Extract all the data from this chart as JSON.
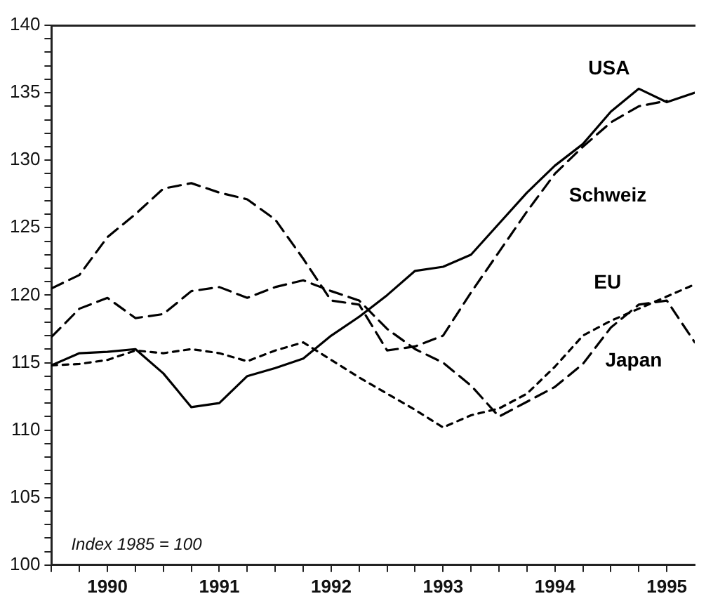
{
  "chart_data": {
    "type": "line",
    "x": [
      1990,
      1990.25,
      1990.5,
      1990.75,
      1991,
      1991.25,
      1991.5,
      1991.75,
      1992,
      1992.25,
      1992.5,
      1992.75,
      1993,
      1993.25,
      1993.5,
      1993.75,
      1994,
      1994.25,
      1994.5,
      1994.75,
      1995,
      1995.25,
      1995.5,
      1995.75
    ],
    "series": [
      {
        "name": "USA",
        "color": "#000000",
        "line_style": "solid",
        "values": [
          114.8,
          115.7,
          115.8,
          116.0,
          114.2,
          111.7,
          112.0,
          114.0,
          114.6,
          115.3,
          117.0,
          118.4,
          120.0,
          121.8,
          122.1,
          123.0,
          125.3,
          127.6,
          129.6,
          131.2,
          133.6,
          135.3,
          134.3,
          135.0
        ]
      },
      {
        "name": "Schweiz",
        "color": "#000000",
        "line_style": "dashed",
        "values": [
          120.5,
          121.5,
          124.3,
          126.0,
          127.9,
          128.3,
          127.6,
          127.1,
          125.6,
          122.7,
          119.6,
          119.3,
          115.9,
          116.2,
          117.0,
          120.2,
          123.2,
          126.2,
          129.0,
          131.0,
          132.8,
          134.0,
          134.4,
          null
        ]
      },
      {
        "name": "EU",
        "color": "#000000",
        "line_style": "dotted",
        "values": [
          114.8,
          114.9,
          115.2,
          115.9,
          115.7,
          116.0,
          115.7,
          115.1,
          115.9,
          116.5,
          115.2,
          113.9,
          112.7,
          111.5,
          110.2,
          111.1,
          111.6,
          112.7,
          114.7,
          117.0,
          118.1,
          119.0,
          119.9,
          120.8
        ]
      },
      {
        "name": "Japan",
        "color": "#000000",
        "line_style": "dashed",
        "values": [
          116.9,
          119.0,
          119.8,
          118.3,
          118.6,
          120.3,
          120.6,
          119.8,
          120.6,
          121.1,
          120.3,
          119.6,
          117.5,
          116.0,
          115.0,
          113.3,
          111.0,
          112.1,
          113.2,
          114.9,
          117.6,
          119.3,
          119.6,
          116.5
        ]
      }
    ],
    "xlim": [
      1990,
      1995.75
    ],
    "xticks": [
      {
        "value": 1990,
        "label": null
      },
      {
        "value": 1990.25,
        "label": null
      },
      {
        "value": 1990.5,
        "label": "1990"
      },
      {
        "value": 1990.75,
        "label": null
      },
      {
        "value": 1991,
        "label": null
      },
      {
        "value": 1991.25,
        "label": null
      },
      {
        "value": 1991.5,
        "label": "1991"
      },
      {
        "value": 1991.75,
        "label": null
      },
      {
        "value": 1992,
        "label": null
      },
      {
        "value": 1992.25,
        "label": null
      },
      {
        "value": 1992.5,
        "label": "1992"
      },
      {
        "value": 1992.75,
        "label": null
      },
      {
        "value": 1993,
        "label": null
      },
      {
        "value": 1993.25,
        "label": null
      },
      {
        "value": 1993.5,
        "label": "1993"
      },
      {
        "value": 1993.75,
        "label": null
      },
      {
        "value": 1994,
        "label": null
      },
      {
        "value": 1994.25,
        "label": null
      },
      {
        "value": 1994.5,
        "label": "1994"
      },
      {
        "value": 1994.75,
        "label": null
      },
      {
        "value": 1995,
        "label": null
      },
      {
        "value": 1995.25,
        "label": null
      },
      {
        "value": 1995.5,
        "label": "1995"
      }
    ],
    "ylim": [
      100,
      140
    ],
    "yticks": [
      100,
      {
        "value": 101,
        "label": null
      },
      {
        "value": 102,
        "label": null
      },
      {
        "value": 103,
        "label": null
      },
      {
        "value": 104,
        "label": null
      },
      105,
      {
        "value": 106,
        "label": null
      },
      {
        "value": 107,
        "label": null
      },
      {
        "value": 108,
        "label": null
      },
      {
        "value": 109,
        "label": null
      },
      110,
      {
        "value": 111,
        "label": null
      },
      {
        "value": 112,
        "label": null
      },
      {
        "value": 113,
        "label": null
      },
      {
        "value": 114,
        "label": null
      },
      115,
      {
        "value": 116,
        "label": null
      },
      {
        "value": 117,
        "label": null
      },
      {
        "value": 118,
        "label": null
      },
      {
        "value": 119,
        "label": null
      },
      120,
      {
        "value": 121,
        "label": null
      },
      {
        "value": 122,
        "label": null
      },
      {
        "value": 123,
        "label": null
      },
      {
        "value": 124,
        "label": null
      },
      125,
      {
        "value": 126,
        "label": null
      },
      {
        "value": 127,
        "label": null
      },
      {
        "value": 128,
        "label": null
      },
      {
        "value": 129,
        "label": null
      },
      130,
      {
        "value": 131,
        "label": null
      },
      {
        "value": 132,
        "label": null
      },
      {
        "value": 133,
        "label": null
      },
      {
        "value": 134,
        "label": null
      },
      135,
      {
        "value": 136,
        "label": null
      },
      {
        "value": 137,
        "label": null
      },
      {
        "value": 138,
        "label": null
      },
      {
        "value": 139,
        "label": null
      },
      140
    ],
    "annotations": [
      "Index 1985 = 100"
    ],
    "grid": false,
    "legend": false,
    "marker": "none"
  }
}
